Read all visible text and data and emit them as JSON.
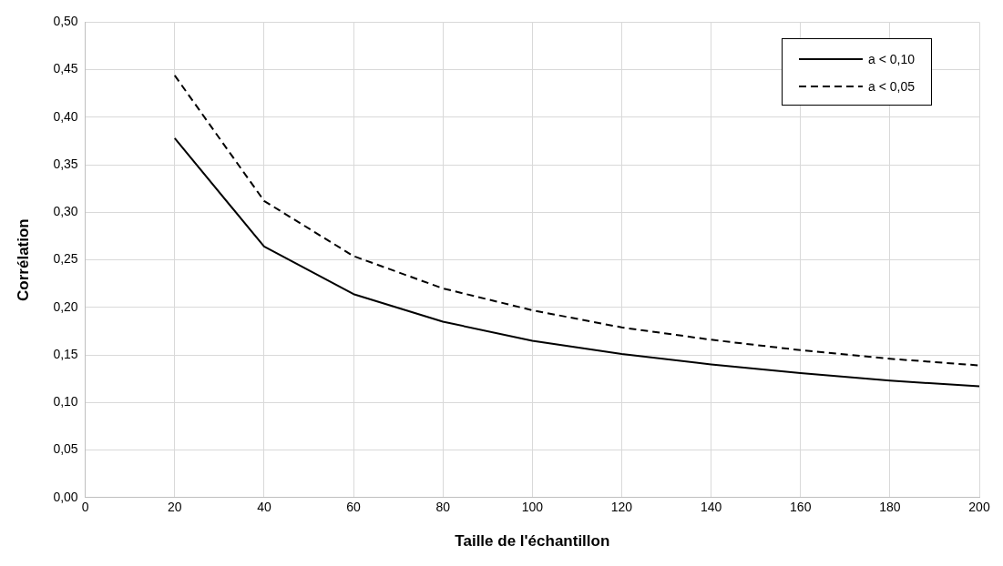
{
  "chart_data": {
    "type": "line",
    "xlabel": "Taille de l'échantillon",
    "ylabel": "Corrélation",
    "x": [
      20,
      40,
      60,
      80,
      100,
      120,
      140,
      160,
      180,
      200
    ],
    "series": [
      {
        "name": "a < 0,10",
        "color": "#000000",
        "line_style": "solid",
        "values": [
          0.378,
          0.264,
          0.214,
          0.185,
          0.165,
          0.151,
          0.14,
          0.131,
          0.123,
          0.117
        ]
      },
      {
        "name": "a < 0,05",
        "color": "#000000",
        "line_style": "dashed",
        "values": [
          0.444,
          0.312,
          0.254,
          0.22,
          0.197,
          0.179,
          0.166,
          0.155,
          0.146,
          0.139
        ]
      }
    ],
    "xlim": [
      0,
      200
    ],
    "xticks": [
      0,
      20,
      40,
      60,
      80,
      100,
      120,
      140,
      160,
      180,
      200
    ],
    "ylim": [
      0,
      0.5
    ],
    "yticks": [
      {
        "value": 0,
        "label": "0,00"
      },
      {
        "value": 0.05,
        "label": "0,05"
      },
      {
        "value": 0.1,
        "label": "0,10"
      },
      {
        "value": 0.15,
        "label": "0,15"
      },
      {
        "value": 0.2,
        "label": "0,20"
      },
      {
        "value": 0.25,
        "label": "0,25"
      },
      {
        "value": 0.3,
        "label": "0,30"
      },
      {
        "value": 0.35,
        "label": "0,35"
      },
      {
        "value": 0.4,
        "label": "0,40"
      },
      {
        "value": 0.45,
        "label": "0,45"
      },
      {
        "value": 0.5,
        "label": "0,50"
      }
    ],
    "grid": true,
    "legend": "top right",
    "marker": "none"
  }
}
